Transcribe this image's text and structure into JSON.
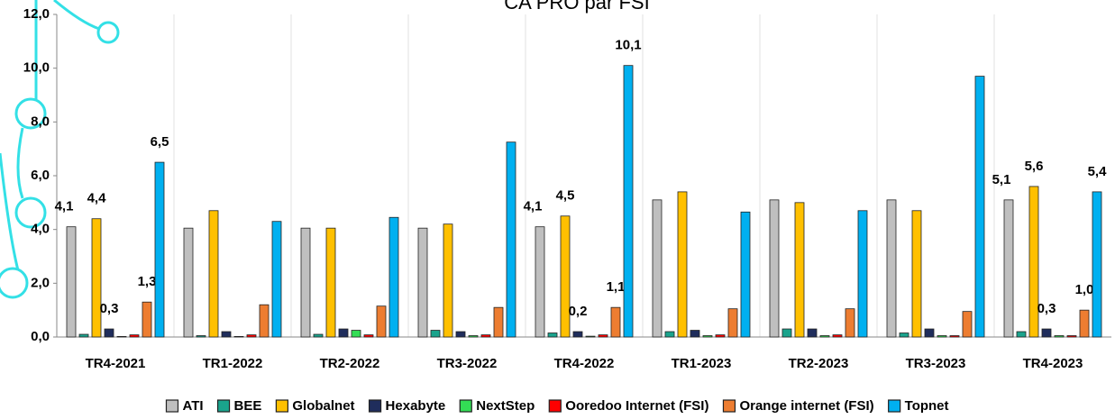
{
  "chart_data": {
    "type": "bar",
    "title": "CA PRO par FSI",
    "categories": [
      "TR4-2021",
      "TR1-2022",
      "TR2-2022",
      "TR3-2022",
      "TR4-2022",
      "TR1-2023",
      "TR2-2023",
      "TR3-2023",
      "TR4-2023"
    ],
    "series": [
      {
        "name": "ATI",
        "color": "#bfbfbf",
        "values": [
          4.1,
          4.05,
          4.05,
          4.05,
          4.1,
          5.1,
          5.1,
          5.1,
          5.1
        ],
        "value_labels": [
          "4,1",
          null,
          null,
          null,
          "4,1",
          null,
          null,
          null,
          "5,1"
        ]
      },
      {
        "name": "BEE",
        "color": "#1aa38c",
        "values": [
          0.1,
          0.05,
          0.1,
          0.25,
          0.15,
          0.2,
          0.3,
          0.15,
          0.2
        ]
      },
      {
        "name": "Globalnet",
        "color": "#ffc000",
        "values": [
          4.4,
          4.7,
          4.05,
          4.2,
          4.5,
          5.4,
          5.0,
          4.7,
          5.6
        ],
        "value_labels": [
          "4,4",
          null,
          null,
          null,
          "4,5",
          null,
          null,
          null,
          "5,6"
        ]
      },
      {
        "name": "Hexabyte",
        "color": "#1f2d5c",
        "values": [
          0.3,
          0.2,
          0.3,
          0.2,
          0.2,
          0.25,
          0.3,
          0.3,
          0.3
        ],
        "value_labels": [
          "0,3",
          null,
          null,
          null,
          "0,2",
          null,
          null,
          null,
          "0,3"
        ]
      },
      {
        "name": "NextStep",
        "color": "#33dd55",
        "values": [
          0.02,
          0.02,
          0.25,
          0.05,
          0.03,
          0.05,
          0.05,
          0.05,
          0.05
        ]
      },
      {
        "name": "Ooredoo Internet (FSI)",
        "color": "#ff0000",
        "values": [
          0.08,
          0.08,
          0.08,
          0.08,
          0.08,
          0.08,
          0.08,
          0.05,
          0.05
        ]
      },
      {
        "name": "Orange internet (FSI)",
        "color": "#ed7d31",
        "values": [
          1.3,
          1.2,
          1.15,
          1.1,
          1.1,
          1.05,
          1.05,
          0.95,
          1.0
        ],
        "value_labels": [
          "1,3",
          null,
          null,
          null,
          "1,1",
          null,
          null,
          null,
          "1,0"
        ]
      },
      {
        "name": "Topnet",
        "color": "#00b0f0",
        "values": [
          6.5,
          4.3,
          4.45,
          7.25,
          10.1,
          4.65,
          4.7,
          9.7,
          5.4
        ],
        "value_labels": [
          "6,5",
          null,
          null,
          null,
          "10,1",
          null,
          null,
          null,
          "5,4"
        ]
      }
    ],
    "ylim": [
      0,
      12
    ],
    "yticks": [
      {
        "value": 0,
        "label": "0,0"
      },
      {
        "value": 2,
        "label": "2,0"
      },
      {
        "value": 4,
        "label": "4,0"
      },
      {
        "value": 6,
        "label": "6,0"
      },
      {
        "value": 8,
        "label": "8,0"
      },
      {
        "value": 10,
        "label": "10,0"
      },
      {
        "value": 12,
        "label": "12,0"
      }
    ],
    "legend": "bottom"
  }
}
